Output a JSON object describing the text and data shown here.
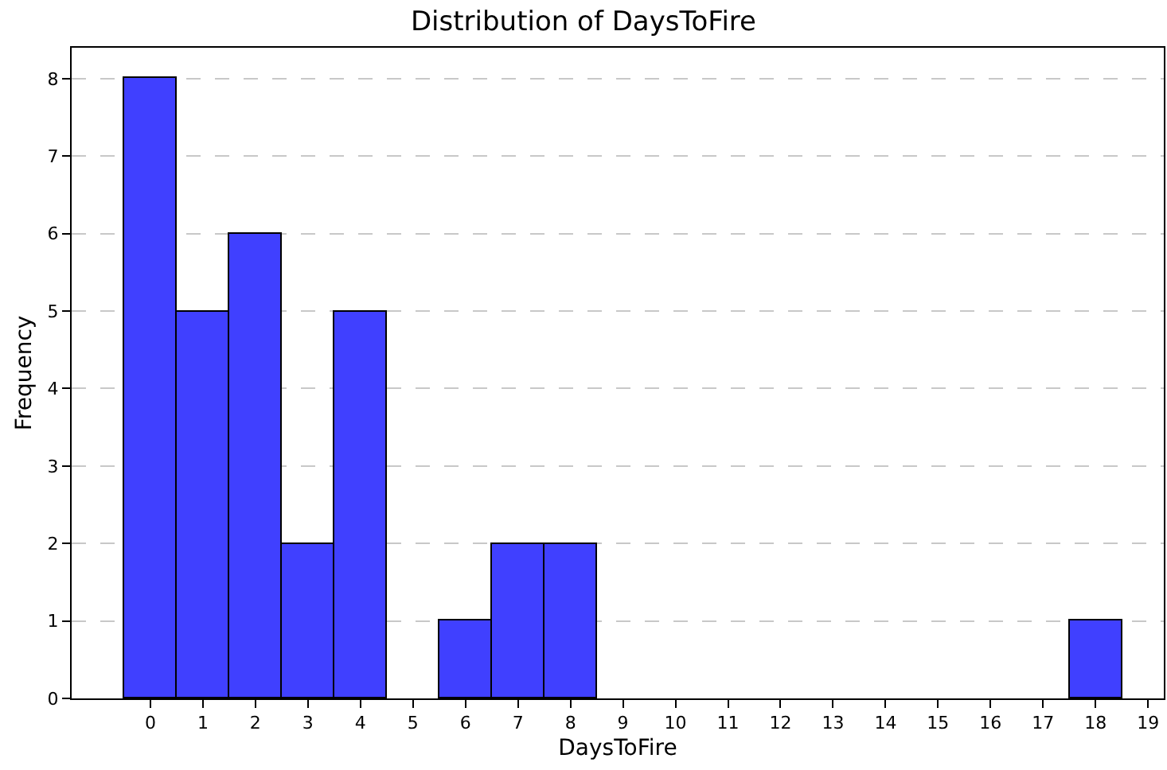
{
  "chart_data": {
    "type": "histogram",
    "title": "Distribution of DaysToFire",
    "xlabel": "DaysToFire",
    "ylabel": "Frequency",
    "bins": [
      -0.5,
      0.5,
      1.5,
      2.5,
      3.5,
      4.5,
      5.5,
      6.5,
      7.5,
      8.5,
      9.5,
      10.5,
      11.5,
      12.5,
      13.5,
      14.5,
      15.5,
      16.5,
      17.5,
      18.5
    ],
    "values": [
      8,
      5,
      6,
      2,
      5,
      0,
      1,
      2,
      2,
      0,
      0,
      0,
      0,
      0,
      0,
      0,
      0,
      0,
      1
    ],
    "color": "#4040ff",
    "xlim": [
      -1.5,
      19.3
    ],
    "xticks": [
      0,
      1,
      2,
      3,
      4,
      5,
      6,
      7,
      8,
      9,
      10,
      11,
      12,
      13,
      14,
      15,
      16,
      17,
      18,
      19
    ],
    "ylim": [
      0,
      8.4
    ],
    "yticks": [
      0,
      1,
      2,
      3,
      4,
      5,
      6,
      7,
      8
    ],
    "grid": "y"
  }
}
